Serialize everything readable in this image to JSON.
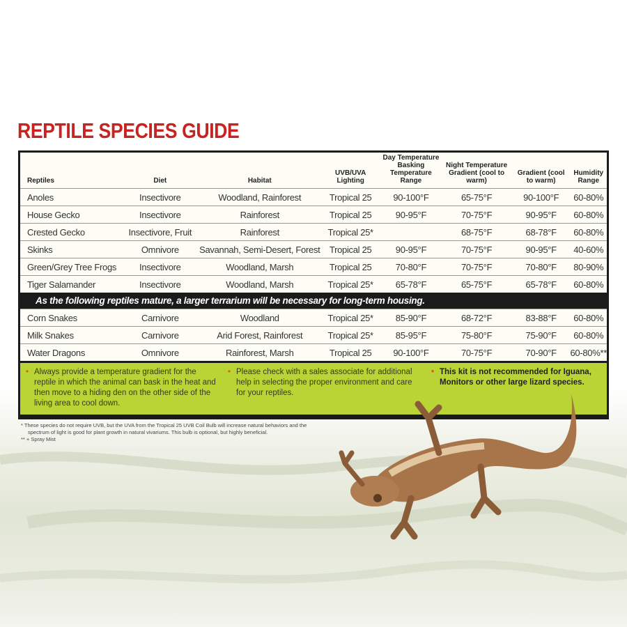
{
  "title": "REPTILE SPECIES GUIDE",
  "table": {
    "headers": [
      "Reptiles",
      "Diet",
      "Habitat",
      "UVB/UVA Lighting",
      "Day Temperature Basking Temperature Range",
      "Night Temperature Gradient (cool to warm)",
      "Gradient (cool to warm)",
      "Humidity Range"
    ],
    "rows": [
      [
        "Anoles",
        "Insectivore",
        "Woodland, Rainforest",
        "Tropical 25",
        "90-100°F",
        "65-75°F",
        "90-100°F",
        "60-80%"
      ],
      [
        "House Gecko",
        "Insectivore",
        "Rainforest",
        "Tropical 25",
        "90-95°F",
        "70-75°F",
        "90-95°F",
        "60-80%"
      ],
      [
        "Crested Gecko",
        "Insectivore, Fruit",
        "Rainforest",
        "Tropical 25*",
        "",
        "68-75°F",
        "68-78°F",
        "60-80%"
      ],
      [
        "Skinks",
        "Omnivore",
        "Savannah, Semi-Desert, Forest",
        "Tropical 25",
        "90-95°F",
        "70-75°F",
        "90-95°F",
        "40-60%"
      ],
      [
        "Green/Grey Tree Frogs",
        "Insectivore",
        "Woodland, Marsh",
        "Tropical 25",
        "70-80°F",
        "70-75°F",
        "70-80°F",
        "80-90%"
      ],
      [
        "Tiger Salamander",
        "Insectivore",
        "Woodland, Marsh",
        "Tropical 25*",
        "65-78°F",
        "65-75°F",
        "65-78°F",
        "60-80%"
      ]
    ],
    "band_text": "As the following reptiles mature, a larger terrarium will be necessary for long-term housing.",
    "rows_after_band": [
      [
        "Corn Snakes",
        "Carnivore",
        "Woodland",
        "Tropical 25*",
        "85-90°F",
        "68-72°F",
        "83-88°F",
        "60-80%"
      ],
      [
        "Milk Snakes",
        "Carnivore",
        "Arid Forest, Rainforest",
        "Tropical 25*",
        "85-95°F",
        "75-80°F",
        "75-90°F",
        "60-80%"
      ],
      [
        "Water Dragons",
        "Omnivore",
        "Rainforest, Marsh",
        "Tropical 25",
        "90-100°F",
        "70-75°F",
        "70-90°F",
        "60-80%**"
      ]
    ]
  },
  "tips": [
    "Always provide a temperature gradient for the reptile in which the animal can bask in the heat and then move to a hiding den on the other side of the living area to cool down.",
    "Please check with a sales associate for additional help in selecting the proper environment and care for your reptiles.",
    "This kit is not recommended for Iguana, Monitors or other large lizard species."
  ],
  "footnotes": [
    "*  These species do not require UVB, but the UVA from the Tropical 25 UVB Coil Bulb will increase natural behaviors and the spectrum of light is good for plant growth in natural vivariums. This bulb is optional, but highly beneficial.",
    "** + Spray Mist"
  ],
  "colors": {
    "title": "#c62420",
    "tip_panel": "#b9d434",
    "band": "#1b1b1b",
    "bullet": "#e0551c"
  }
}
